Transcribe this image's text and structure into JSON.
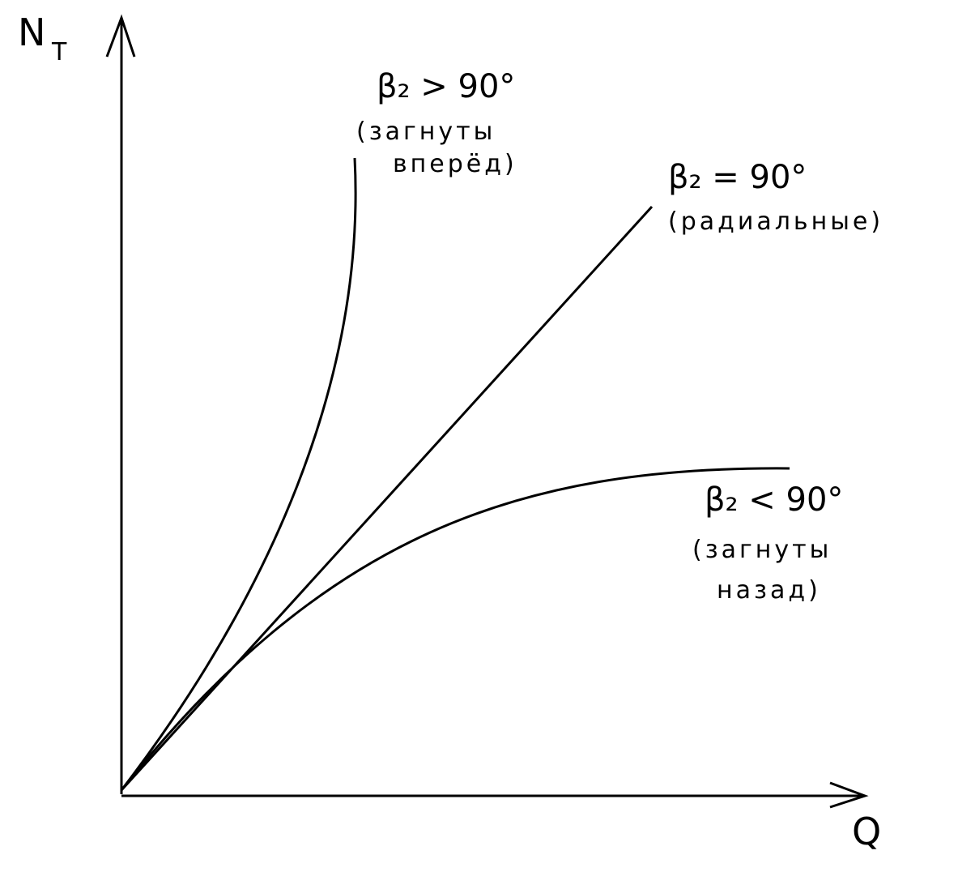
{
  "axes": {
    "y_label": "N",
    "y_label_sub": "T",
    "x_label": "Q"
  },
  "curves": [
    {
      "label": "β₂ > 90°",
      "note_lines": [
        "(загнуты",
        "вперёд)"
      ]
    },
    {
      "label": "β₂ = 90°",
      "note_lines": [
        "(радиальные)"
      ]
    },
    {
      "label": "β₂ < 90°",
      "note_lines": [
        "(загнуты",
        "назад)"
      ]
    }
  ]
}
